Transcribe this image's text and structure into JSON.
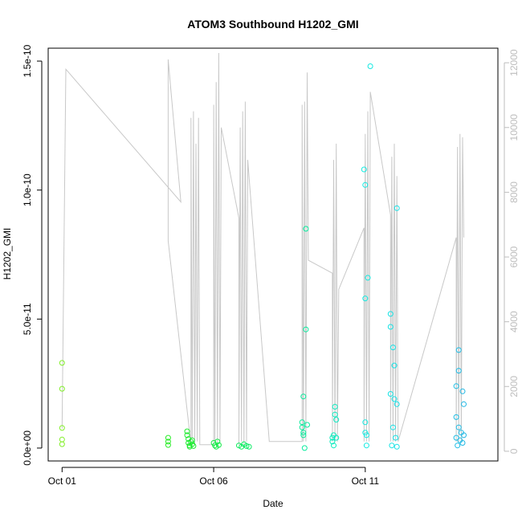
{
  "chart_data": {
    "type": "scatter",
    "title": "ATOM3 Southbound H1202_GMI",
    "xlabel": "Date",
    "ylabel": "H1202_GMI",
    "x_ticks": [
      "Oct 01",
      "Oct 06",
      "Oct 11"
    ],
    "y_ticks": [
      "0.0e+00",
      "5.0e-11",
      "1.0e-10",
      "1.5e-10"
    ],
    "y_tick_values": [
      0,
      5e-11,
      1e-10,
      1.5e-10
    ],
    "y2_ticks": [
      "0",
      "2000",
      "4000",
      "6000",
      "8000",
      "10000",
      "12000"
    ],
    "y2_tick_values": [
      0,
      2000,
      4000,
      6000,
      8000,
      10000,
      12000
    ],
    "xlim": [
      "2016-09-30T13:00",
      "2016-10-15T09:00"
    ],
    "ylim": [
      -5e-12,
      1.55e-10
    ],
    "y2lim": [
      -300,
      12450
    ],
    "grid": false,
    "point_color_scale": "green to cyan to blue, by date",
    "series": [
      {
        "axis": "left",
        "style": "open circles",
        "points": [
          {
            "x": "2016-10-01T00:00",
            "y": 3.3e-11
          },
          {
            "x": "2016-10-01T00:00",
            "y": 2.3e-11
          },
          {
            "x": "2016-10-01T00:00",
            "y": 7.8e-12
          },
          {
            "x": "2016-10-01T00:00",
            "y": 3.3e-12
          },
          {
            "x": "2016-10-01T00:00",
            "y": 1.5e-12
          },
          {
            "x": "2016-10-04T12:00",
            "y": 4e-12
          },
          {
            "x": "2016-10-04T12:00",
            "y": 2.5e-12
          },
          {
            "x": "2016-10-04T12:00",
            "y": 1.2e-12
          },
          {
            "x": "2016-10-05T03:00",
            "y": 6.5e-12
          },
          {
            "x": "2016-10-05T03:00",
            "y": 5e-12
          },
          {
            "x": "2016-10-05T04:00",
            "y": 3.5e-12
          },
          {
            "x": "2016-10-05T04:00",
            "y": 2e-12
          },
          {
            "x": "2016-10-05T05:00",
            "y": 1e-12
          },
          {
            "x": "2016-10-05T05:00",
            "y": 5e-13
          },
          {
            "x": "2016-10-05T06:00",
            "y": 2.5e-12
          },
          {
            "x": "2016-10-05T07:00",
            "y": 1.5e-12
          },
          {
            "x": "2016-10-05T07:00",
            "y": 3e-12
          },
          {
            "x": "2016-10-05T08:00",
            "y": 8e-13
          },
          {
            "x": "2016-10-06T00:00",
            "y": 2e-12
          },
          {
            "x": "2016-10-06T01:00",
            "y": 1e-12
          },
          {
            "x": "2016-10-06T02:00",
            "y": 5e-13
          },
          {
            "x": "2016-10-06T03:00",
            "y": 2.5e-12
          },
          {
            "x": "2016-10-06T04:00",
            "y": 1.2e-12
          },
          {
            "x": "2016-10-06T20:00",
            "y": 1e-12
          },
          {
            "x": "2016-10-06T22:00",
            "y": 5e-13
          },
          {
            "x": "2016-10-07T00:00",
            "y": 1.5e-12
          },
          {
            "x": "2016-10-07T02:00",
            "y": 8e-13
          },
          {
            "x": "2016-10-07T04:00",
            "y": 5e-13
          },
          {
            "x": "2016-10-08T22:00",
            "y": 1e-11
          },
          {
            "x": "2016-10-08T22:00",
            "y": 8e-12
          },
          {
            "x": "2016-10-08T23:00",
            "y": 6e-12
          },
          {
            "x": "2016-10-08T23:00",
            "y": 5e-12
          },
          {
            "x": "2016-10-08T23:00",
            "y": 2e-11
          },
          {
            "x": "2016-10-09T00:00",
            "y": 0
          },
          {
            "x": "2016-10-09T01:00",
            "y": 8.5e-11
          },
          {
            "x": "2016-10-09T01:00",
            "y": 4.6e-11
          },
          {
            "x": "2016-10-09T02:00",
            "y": 9e-12
          },
          {
            "x": "2016-10-09T22:00",
            "y": 4e-12
          },
          {
            "x": "2016-10-09T22:00",
            "y": 2.5e-12
          },
          {
            "x": "2016-10-09T23:00",
            "y": 1e-12
          },
          {
            "x": "2016-10-09T23:00",
            "y": 5e-12
          },
          {
            "x": "2016-10-10T00:00",
            "y": 1.6e-11
          },
          {
            "x": "2016-10-10T00:00",
            "y": 1.3e-11
          },
          {
            "x": "2016-10-10T01:00",
            "y": 1.1e-11
          },
          {
            "x": "2016-10-10T01:00",
            "y": 4e-12
          },
          {
            "x": "2016-10-10T23:00",
            "y": 1.08e-10
          },
          {
            "x": "2016-10-11T00:00",
            "y": 1.02e-10
          },
          {
            "x": "2016-10-11T00:00",
            "y": 5.8e-11
          },
          {
            "x": "2016-10-11T02:00",
            "y": 6.6e-11
          },
          {
            "x": "2016-10-11T00:00",
            "y": 1e-11
          },
          {
            "x": "2016-10-11T00:00",
            "y": 6e-12
          },
          {
            "x": "2016-10-11T01:00",
            "y": 5e-12
          },
          {
            "x": "2016-10-11T01:00",
            "y": 1e-12
          },
          {
            "x": "2016-10-11T04:00",
            "y": 1.48e-10
          },
          {
            "x": "2016-10-11T20:00",
            "y": 5.2e-11
          },
          {
            "x": "2016-10-11T20:00",
            "y": 4.7e-11
          },
          {
            "x": "2016-10-11T22:00",
            "y": 3.9e-11
          },
          {
            "x": "2016-10-11T23:00",
            "y": 3.2e-11
          },
          {
            "x": "2016-10-12T01:00",
            "y": 9.3e-11
          },
          {
            "x": "2016-10-11T20:00",
            "y": 2.1e-11
          },
          {
            "x": "2016-10-11T23:00",
            "y": 1.9e-11
          },
          {
            "x": "2016-10-12T01:00",
            "y": 1.7e-11
          },
          {
            "x": "2016-10-11T22:00",
            "y": 8e-12
          },
          {
            "x": "2016-10-12T00:00",
            "y": 4e-12
          },
          {
            "x": "2016-10-11T21:00",
            "y": 1e-12
          },
          {
            "x": "2016-10-12T01:00",
            "y": 5e-13
          },
          {
            "x": "2016-10-14T02:00",
            "y": 3.8e-11
          },
          {
            "x": "2016-10-14T02:00",
            "y": 3e-11
          },
          {
            "x": "2016-10-14T00:00",
            "y": 2.4e-11
          },
          {
            "x": "2016-10-14T05:00",
            "y": 2.2e-11
          },
          {
            "x": "2016-10-14T06:00",
            "y": 1.7e-11
          },
          {
            "x": "2016-10-14T00:00",
            "y": 1.2e-11
          },
          {
            "x": "2016-10-14T02:00",
            "y": 8e-12
          },
          {
            "x": "2016-10-14T04:00",
            "y": 6e-12
          },
          {
            "x": "2016-10-14T06:00",
            "y": 5e-12
          },
          {
            "x": "2016-10-14T00:00",
            "y": 4e-12
          },
          {
            "x": "2016-10-14T03:00",
            "y": 3e-12
          },
          {
            "x": "2016-10-14T05:00",
            "y": 2e-12
          },
          {
            "x": "2016-10-14T01:00",
            "y": 1e-12
          }
        ]
      },
      {
        "axis": "right",
        "style": "grey line",
        "color": "#c8c8c8",
        "points": [
          {
            "x": "2016-10-01T00:00",
            "y": 700
          },
          {
            "x": "2016-10-01T03:00",
            "y": 11800
          },
          {
            "x": "2016-10-04T22:00",
            "y": 7700
          },
          {
            "x": "2016-10-04T12:00",
            "y": 12100
          },
          {
            "x": "2016-10-04T12:00",
            "y": 6500
          },
          {
            "x": "2016-10-05T06:00",
            "y": 200
          },
          {
            "x": "2016-10-05T06:00",
            "y": 10300
          },
          {
            "x": "2016-10-05T07:00",
            "y": 400
          },
          {
            "x": "2016-10-05T08:00",
            "y": 10500
          },
          {
            "x": "2016-10-05T09:00",
            "y": 200
          },
          {
            "x": "2016-10-05T10:00",
            "y": 9500
          },
          {
            "x": "2016-10-05T11:00",
            "y": 300
          },
          {
            "x": "2016-10-05T12:00",
            "y": 10300
          },
          {
            "x": "2016-10-05T13:00",
            "y": 200
          },
          {
            "x": "2016-10-06T00:00",
            "y": 200
          },
          {
            "x": "2016-10-06T00:00",
            "y": 10700
          },
          {
            "x": "2016-10-06T01:00",
            "y": 300
          },
          {
            "x": "2016-10-06T02:00",
            "y": 11400
          },
          {
            "x": "2016-10-06T03:00",
            "y": 200
          },
          {
            "x": "2016-10-06T04:00",
            "y": 12300
          },
          {
            "x": "2016-10-06T05:00",
            "y": 300
          },
          {
            "x": "2016-10-06T06:00",
            "y": 10000
          },
          {
            "x": "2016-10-06T08:00",
            "y": 9600
          },
          {
            "x": "2016-10-06T20:00",
            "y": 7200
          },
          {
            "x": "2016-10-06T20:00",
            "y": 200
          },
          {
            "x": "2016-10-06T21:00",
            "y": 10000
          },
          {
            "x": "2016-10-06T22:00",
            "y": 300
          },
          {
            "x": "2016-10-06T23:00",
            "y": 10500
          },
          {
            "x": "2016-10-07T00:00",
            "y": 200
          },
          {
            "x": "2016-10-07T01:00",
            "y": 10800
          },
          {
            "x": "2016-10-07T02:00",
            "y": 300
          },
          {
            "x": "2016-10-07T03:00",
            "y": 9000
          },
          {
            "x": "2016-10-07T20:00",
            "y": 300
          },
          {
            "x": "2016-10-08T22:00",
            "y": 300
          },
          {
            "x": "2016-10-08T22:00",
            "y": 10700
          },
          {
            "x": "2016-10-08T23:00",
            "y": 300
          },
          {
            "x": "2016-10-09T00:00",
            "y": 10800
          },
          {
            "x": "2016-10-09T01:00",
            "y": 300
          },
          {
            "x": "2016-10-09T02:00",
            "y": 11700
          },
          {
            "x": "2016-10-09T03:00",
            "y": 5900
          },
          {
            "x": "2016-10-09T22:00",
            "y": 5500
          },
          {
            "x": "2016-10-09T22:00",
            "y": 300
          },
          {
            "x": "2016-10-09T23:00",
            "y": 9000
          },
          {
            "x": "2016-10-10T00:00",
            "y": 300
          },
          {
            "x": "2016-10-10T01:00",
            "y": 9500
          },
          {
            "x": "2016-10-10T02:00",
            "y": 300
          },
          {
            "x": "2016-10-10T03:00",
            "y": 5000
          },
          {
            "x": "2016-10-10T23:00",
            "y": 6900
          },
          {
            "x": "2016-10-10T23:00",
            "y": 300
          },
          {
            "x": "2016-10-11T00:00",
            "y": 9800
          },
          {
            "x": "2016-10-11T01:00",
            "y": 300
          },
          {
            "x": "2016-10-11T02:00",
            "y": 10500
          },
          {
            "x": "2016-10-11T03:00",
            "y": 300
          },
          {
            "x": "2016-10-11T04:00",
            "y": 11100
          },
          {
            "x": "2016-10-11T20:00",
            "y": 7300
          },
          {
            "x": "2016-10-11T20:00",
            "y": 300
          },
          {
            "x": "2016-10-11T21:00",
            "y": 9100
          },
          {
            "x": "2016-10-11T22:00",
            "y": 300
          },
          {
            "x": "2016-10-11T23:00",
            "y": 9500
          },
          {
            "x": "2016-10-12T00:00",
            "y": 300
          },
          {
            "x": "2016-10-12T01:00",
            "y": 8500
          },
          {
            "x": "2016-10-12T02:00",
            "y": 300
          },
          {
            "x": "2016-10-14T00:00",
            "y": 6600
          },
          {
            "x": "2016-10-14T00:00",
            "y": 300
          },
          {
            "x": "2016-10-14T01:00",
            "y": 9400
          },
          {
            "x": "2016-10-14T02:00",
            "y": 300
          },
          {
            "x": "2016-10-14T03:00",
            "y": 9800
          },
          {
            "x": "2016-10-14T04:00",
            "y": 300
          },
          {
            "x": "2016-10-14T05:00",
            "y": 9700
          },
          {
            "x": "2016-10-14T06:00",
            "y": 6600
          }
        ]
      }
    ]
  }
}
